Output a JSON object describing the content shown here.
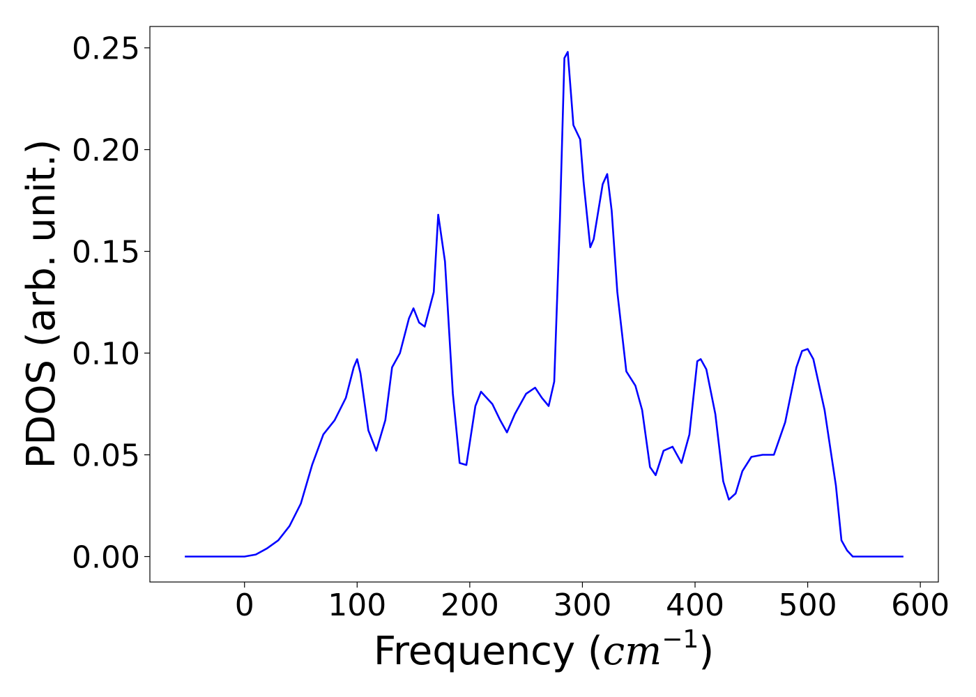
{
  "chart_data": {
    "type": "line",
    "title": "",
    "xlabel": "Frequency (",
    "xlabel_math": "cm",
    "xlabel_exp": "−1",
    "xlabel_close": ")",
    "ylabel": "PDOS (arb. unit.)",
    "xlim": [
      -84,
      616
    ],
    "ylim": [
      -0.0125,
      0.2605
    ],
    "xticks": [
      0,
      100,
      200,
      300,
      400,
      500,
      600
    ],
    "xtick_labels": [
      "0",
      "100",
      "200",
      "300",
      "400",
      "500",
      "600"
    ],
    "yticks": [
      0.0,
      0.05,
      0.1,
      0.15,
      0.2,
      0.25
    ],
    "ytick_labels": [
      "0.00",
      "0.05",
      "0.10",
      "0.15",
      "0.20",
      "0.25"
    ],
    "grid": false,
    "legend": "none",
    "series": [
      {
        "color": "#0000ff",
        "x": [
          -53,
          -40,
          -20,
          0,
          10,
          20,
          30,
          40,
          50,
          60,
          70,
          80,
          90,
          97,
          100,
          103,
          110,
          117,
          125,
          131,
          138,
          146,
          150,
          155,
          160,
          168,
          172,
          178,
          185,
          191,
          197,
          205,
          210,
          220,
          227,
          233,
          240,
          250,
          258,
          264,
          270,
          275,
          280,
          284,
          287,
          292,
          298,
          301,
          307,
          310,
          318,
          322,
          326,
          331,
          339,
          347,
          353,
          360,
          365,
          372,
          380,
          388,
          395,
          402,
          405,
          410,
          418,
          425,
          430,
          436,
          442,
          450,
          460,
          470,
          480,
          490,
          495,
          500,
          505,
          515,
          525,
          530,
          535,
          540,
          550,
          570,
          585
        ],
        "values": [
          0,
          0,
          0,
          0,
          0.001,
          0.004,
          0.008,
          0.015,
          0.026,
          0.045,
          0.06,
          0.067,
          0.078,
          0.093,
          0.097,
          0.09,
          0.062,
          0.052,
          0.067,
          0.093,
          0.1,
          0.117,
          0.122,
          0.115,
          0.113,
          0.13,
          0.168,
          0.145,
          0.08,
          0.046,
          0.045,
          0.074,
          0.081,
          0.075,
          0.067,
          0.061,
          0.07,
          0.08,
          0.083,
          0.078,
          0.074,
          0.086,
          0.165,
          0.245,
          0.248,
          0.212,
          0.205,
          0.184,
          0.152,
          0.156,
          0.183,
          0.188,
          0.17,
          0.13,
          0.091,
          0.084,
          0.072,
          0.044,
          0.04,
          0.052,
          0.054,
          0.046,
          0.06,
          0.096,
          0.097,
          0.092,
          0.07,
          0.037,
          0.028,
          0.031,
          0.042,
          0.049,
          0.05,
          0.05,
          0.066,
          0.093,
          0.101,
          0.102,
          0.097,
          0.072,
          0.035,
          0.008,
          0.003,
          0,
          0,
          0,
          0
        ]
      }
    ]
  }
}
